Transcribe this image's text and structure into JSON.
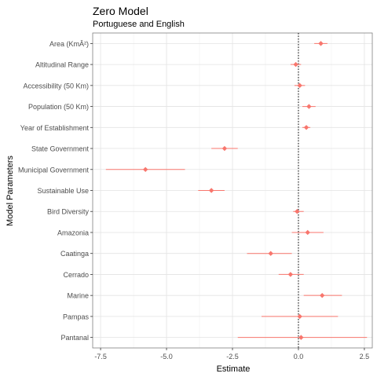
{
  "chart_data": {
    "type": "scatter",
    "subtype": "coefficient-plot-with-error-bars",
    "title": "Zero Model",
    "subtitle": "Portuguese and English",
    "xlabel": "Estimate",
    "ylabel": "Model Parameters",
    "xlim": [
      -7.8,
      2.8
    ],
    "xticks": [
      -7.5,
      -5.0,
      -2.5,
      0.0,
      2.5
    ],
    "xtick_labels": [
      "-7.5",
      "-5.0",
      "-2.5",
      "0.0",
      "2.5"
    ],
    "reference_line": {
      "x": 0,
      "style": "dotted",
      "color": "#000000"
    },
    "grid": true,
    "legend": "none",
    "point_color": "#F8766D",
    "parameters": [
      {
        "label": "Area (KmÂ²)",
        "estimate": 0.85,
        "lower": 0.6,
        "upper": 1.1
      },
      {
        "label": "Altitudinal Range",
        "estimate": -0.1,
        "lower": -0.3,
        "upper": 0.1
      },
      {
        "label": "Accessibility (50 Km)",
        "estimate": 0.05,
        "lower": -0.15,
        "upper": 0.25
      },
      {
        "label": "Population (50 Km)",
        "estimate": 0.4,
        "lower": 0.15,
        "upper": 0.65
      },
      {
        "label": "Year of Establishment",
        "estimate": 0.3,
        "lower": 0.15,
        "upper": 0.45
      },
      {
        "label": "State Government",
        "estimate": -2.8,
        "lower": -3.3,
        "upper": -2.3
      },
      {
        "label": "Municipal Government",
        "estimate": -5.8,
        "lower": -7.3,
        "upper": -4.3
      },
      {
        "label": "Sustainable Use",
        "estimate": -3.3,
        "lower": -3.8,
        "upper": -2.8
      },
      {
        "label": "Bird Diversity",
        "estimate": -0.05,
        "lower": -0.2,
        "upper": 0.2
      },
      {
        "label": "Amazonia",
        "estimate": 0.35,
        "lower": -0.25,
        "upper": 0.95
      },
      {
        "label": "Caatinga",
        "estimate": -1.05,
        "lower": -1.95,
        "upper": -0.25
      },
      {
        "label": "Cerrado",
        "estimate": -0.3,
        "lower": -0.75,
        "upper": 0.2
      },
      {
        "label": "Marine",
        "estimate": 0.9,
        "lower": 0.2,
        "upper": 1.65
      },
      {
        "label": "Pampas",
        "estimate": 0.05,
        "lower": -1.4,
        "upper": 1.5
      },
      {
        "label": "Pantanal",
        "estimate": 0.1,
        "lower": -2.3,
        "upper": 2.6
      }
    ]
  }
}
